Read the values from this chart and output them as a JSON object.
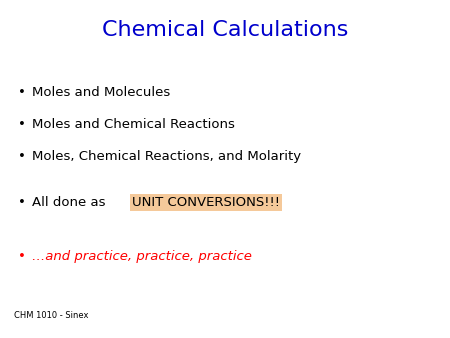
{
  "title": "Chemical Calculations",
  "title_color": "#0000CC",
  "title_fontsize": 16,
  "background_color": "#FFFFFF",
  "bullet_items": [
    {
      "text": "Moles and Molecules",
      "color": "#000000"
    },
    {
      "text": "Moles and Chemical Reactions",
      "color": "#000000"
    },
    {
      "text": "Moles, Chemical Reactions, and Molarity",
      "color": "#000000"
    }
  ],
  "highlight_item": {
    "prefix": "All done as ",
    "highlighted": "UNIT CONVERSIONS!!!",
    "prefix_color": "#000000",
    "highlight_color": "#F5C99A",
    "text_color": "#000000",
    "bullet_color": "#000000"
  },
  "practice_item": {
    "text": "…and practice, practice, practice",
    "color": "#FF0000",
    "bullet_color": "#FF0000"
  },
  "footer": "CHM 1010 - Sinex",
  "footer_color": "#000000",
  "footer_fontsize": 6,
  "bullet_fontsize": 9.5,
  "bullet_symbol": "•"
}
